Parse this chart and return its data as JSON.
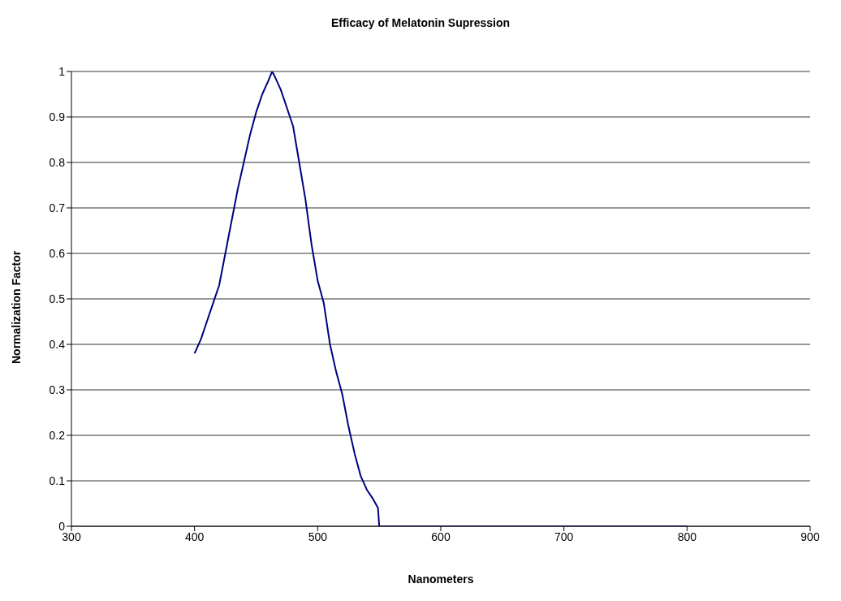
{
  "chart_data": {
    "type": "line",
    "title": "Efficacy of Melatonin Supression",
    "xlabel": "Nanometers",
    "ylabel": "Normalization Factor",
    "x": [
      400,
      405,
      410,
      415,
      420,
      425,
      430,
      435,
      440,
      445,
      450,
      455,
      460,
      463,
      465,
      470,
      475,
      480,
      485,
      490,
      495,
      500,
      505,
      510,
      515,
      520,
      525,
      530,
      535,
      540,
      545,
      549,
      550,
      600,
      800
    ],
    "series": [
      {
        "color": "#000080",
        "values": [
          0.38,
          0.41,
          0.45,
          0.49,
          0.53,
          0.6,
          0.67,
          0.74,
          0.8,
          0.86,
          0.91,
          0.95,
          0.98,
          1.0,
          0.99,
          0.96,
          0.92,
          0.88,
          0.8,
          0.72,
          0.62,
          0.54,
          0.49,
          0.4,
          0.34,
          0.29,
          0.22,
          0.16,
          0.11,
          0.08,
          0.06,
          0.04,
          0,
          0,
          0
        ]
      }
    ],
    "xlim": [
      300,
      900
    ],
    "xticks": [
      300,
      400,
      500,
      600,
      700,
      800,
      900
    ],
    "ylim": [
      0,
      1
    ],
    "yticks": [
      0,
      0.1,
      0.2,
      0.3,
      0.4,
      0.5,
      0.6,
      0.7,
      0.8,
      0.9,
      1
    ],
    "grid": "y",
    "marker": "none",
    "line_style": "solid",
    "legend": false
  }
}
